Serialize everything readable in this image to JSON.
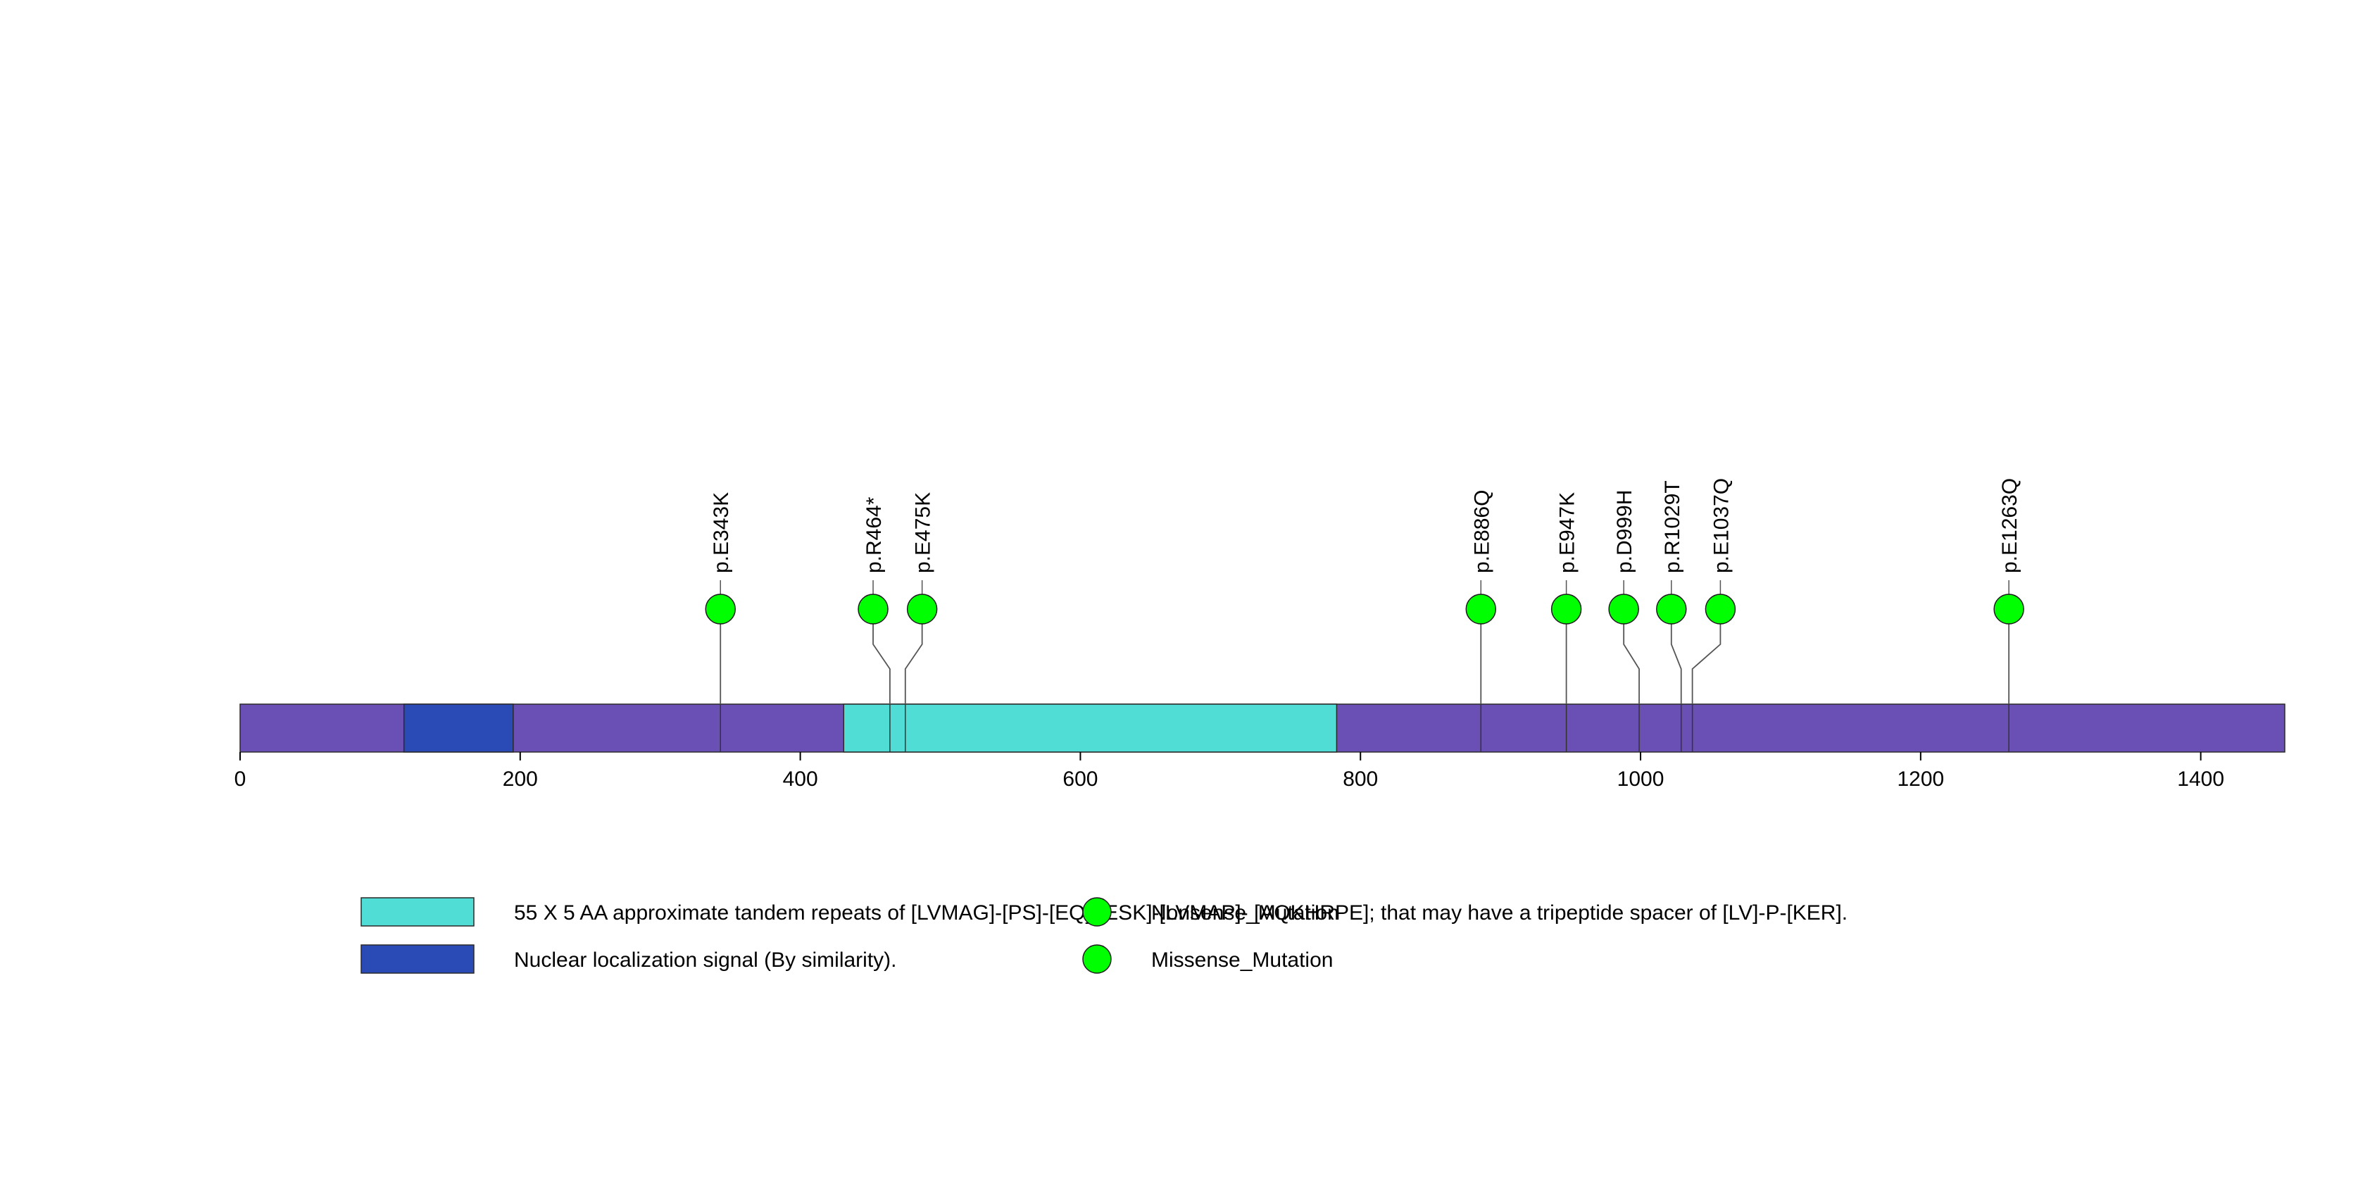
{
  "chart_data": {
    "type": "lollipop",
    "x_ticks": [
      0,
      200,
      400,
      600,
      800,
      1000,
      1200,
      1400
    ],
    "xlim": [
      0,
      1460
    ],
    "colors": {
      "backbone": "#6a50b4",
      "repeat_domain": "#50ddd6",
      "nls_domain": "#2a4bb6",
      "marker": "#00ff00"
    },
    "domains": [
      {
        "start": 117,
        "end": 195,
        "color": "#2a4bb6"
      },
      {
        "start": 431,
        "end": 783,
        "color": "#50ddd6"
      }
    ],
    "mutations": [
      {
        "label": "p.E343K",
        "pos": 343,
        "marker_x": 343,
        "count": 1
      },
      {
        "label": "p.R464*",
        "pos": 464,
        "marker_x": 452,
        "count": 1
      },
      {
        "label": "p.E475K",
        "pos": 475,
        "marker_x": 487,
        "count": 1
      },
      {
        "label": "p.E886Q",
        "pos": 886,
        "marker_x": 886,
        "count": 1
      },
      {
        "label": "p.E947K",
        "pos": 947,
        "marker_x": 947,
        "count": 1
      },
      {
        "label": "p.D999H",
        "pos": 999,
        "marker_x": 988,
        "count": 1
      },
      {
        "label": "p.R1029T",
        "pos": 1029,
        "marker_x": 1022,
        "count": 1
      },
      {
        "label": "p.E1037Q",
        "pos": 1037,
        "marker_x": 1057,
        "count": 1
      },
      {
        "label": "p.E1263Q",
        "pos": 1263,
        "marker_x": 1263,
        "count": 1
      }
    ],
    "legend": [
      {
        "kind": "box",
        "color": "#50ddd6",
        "label": "55 X 5 AA approximate tandem repeats of [LVMAG]-[PS]-[EQ]-[ESK]-[LVMAP]- [AQKHRPE]; that may have a tripeptide spacer of [LV]-P-[KER]."
      },
      {
        "kind": "box",
        "color": "#2a4bb6",
        "label": "Nuclear localization signal (By similarity)."
      },
      {
        "kind": "dot",
        "color": "#00ff00",
        "label": "Nonsense_Mutation"
      },
      {
        "kind": "dot",
        "color": "#00ff00",
        "label": "Missense_Mutation"
      }
    ]
  }
}
